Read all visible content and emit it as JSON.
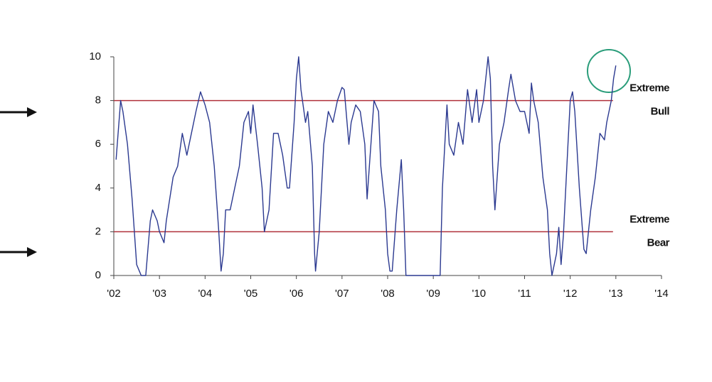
{
  "chart_data": {
    "type": "line",
    "x": [
      2002.05,
      2002.15,
      2002.2,
      2002.3,
      2002.4,
      2002.5,
      2002.6,
      2002.7,
      2002.8,
      2002.85,
      2002.95,
      2003.0,
      2003.1,
      2003.15,
      2003.3,
      2003.4,
      2003.5,
      2003.6,
      2003.7,
      2003.8,
      2003.9,
      2004.0,
      2004.1,
      2004.2,
      2004.3,
      2004.35,
      2004.4,
      2004.45,
      2004.55,
      2004.65,
      2004.75,
      2004.85,
      2004.95,
      2005.0,
      2005.05,
      2005.15,
      2005.25,
      2005.3,
      2005.4,
      2005.5,
      2005.6,
      2005.7,
      2005.8,
      2005.85,
      2005.95,
      2006.0,
      2006.05,
      2006.1,
      2006.2,
      2006.25,
      2006.35,
      2006.4,
      2006.42,
      2006.5,
      2006.6,
      2006.7,
      2006.8,
      2006.9,
      2007.0,
      2007.05,
      2007.15,
      2007.2,
      2007.3,
      2007.4,
      2007.5,
      2007.55,
      2007.6,
      2007.7,
      2007.8,
      2007.85,
      2007.95,
      2008.0,
      2008.05,
      2008.1,
      2008.2,
      2008.3,
      2008.35,
      2008.4,
      2008.45,
      2009.15,
      2009.2,
      2009.3,
      2009.35,
      2009.45,
      2009.55,
      2009.65,
      2009.75,
      2009.85,
      2009.95,
      2010.0,
      2010.1,
      2010.2,
      2010.25,
      2010.3,
      2010.35,
      2010.45,
      2010.55,
      2010.65,
      2010.7,
      2010.8,
      2010.9,
      2011.0,
      2011.1,
      2011.15,
      2011.2,
      2011.3,
      2011.4,
      2011.5,
      2011.55,
      2011.6,
      2011.7,
      2011.75,
      2011.8,
      2011.85,
      2011.95,
      2012.0,
      2012.05,
      2012.1,
      2012.2,
      2012.3,
      2012.35,
      2012.45,
      2012.55,
      2012.65,
      2012.75,
      2012.8,
      2012.9,
      2012.95,
      2013.0
    ],
    "values": [
      5.3,
      8,
      7.5,
      6,
      3.5,
      0.5,
      0,
      0,
      2.5,
      3,
      2.5,
      2,
      1.5,
      2.5,
      4.5,
      5,
      6.5,
      5.5,
      6.5,
      7.5,
      8.4,
      7.8,
      7,
      5,
      2,
      0.2,
      1,
      3,
      3,
      4,
      5,
      7,
      7.5,
      6.5,
      7.8,
      6,
      4,
      2,
      3,
      6.5,
      6.5,
      5.5,
      4,
      4,
      7,
      9,
      10,
      8.5,
      7,
      7.5,
      5,
      1,
      0.2,
      2,
      6,
      7.5,
      7,
      8,
      8.6,
      8.5,
      6,
      7,
      7.8,
      7.5,
      6,
      3.5,
      5,
      8,
      7.5,
      5,
      3,
      1,
      0.2,
      0.2,
      3,
      5.3,
      3,
      0,
      0,
      0,
      4,
      7.8,
      6,
      5.5,
      7,
      6,
      8.5,
      7,
      8.5,
      7,
      8,
      10,
      9,
      5,
      3,
      6,
      7,
      8.5,
      9.2,
      8,
      7.5,
      7.5,
      6.5,
      8.8,
      8,
      7,
      4.5,
      3,
      1,
      0,
      1,
      2.2,
      0.5,
      1.8,
      6,
      8,
      8.4,
      7.5,
      4,
      1.2,
      1,
      3,
      4.5,
      6.5,
      6.2,
      7,
      8,
      9,
      9.6
    ],
    "color": "#2b3990",
    "xlim": [
      2002,
      2014
    ],
    "xticks": [
      {
        "value": 2002,
        "label": "'02"
      },
      {
        "value": 2003,
        "label": "'03"
      },
      {
        "value": 2004,
        "label": "'04"
      },
      {
        "value": 2005,
        "label": "'05"
      },
      {
        "value": 2006,
        "label": "'06"
      },
      {
        "value": 2007,
        "label": "'07"
      },
      {
        "value": 2008,
        "label": "'08"
      },
      {
        "value": 2009,
        "label": "'09"
      },
      {
        "value": 2010,
        "label": "'10"
      },
      {
        "value": 2011,
        "label": "'11"
      },
      {
        "value": 2012,
        "label": "'12"
      },
      {
        "value": 2013,
        "label": "'13"
      },
      {
        "value": 2014,
        "label": "'14"
      }
    ],
    "ylim": [
      0,
      10
    ],
    "yticks": [
      0,
      2,
      4,
      6,
      8,
      10
    ],
    "reference_color": "#b0303a",
    "reference_lines": [
      {
        "value": 8,
        "label": [
          "Extreme",
          "Bull"
        ]
      },
      {
        "value": 2,
        "label": [
          "Extreme",
          "Bear"
        ]
      }
    ]
  }
}
